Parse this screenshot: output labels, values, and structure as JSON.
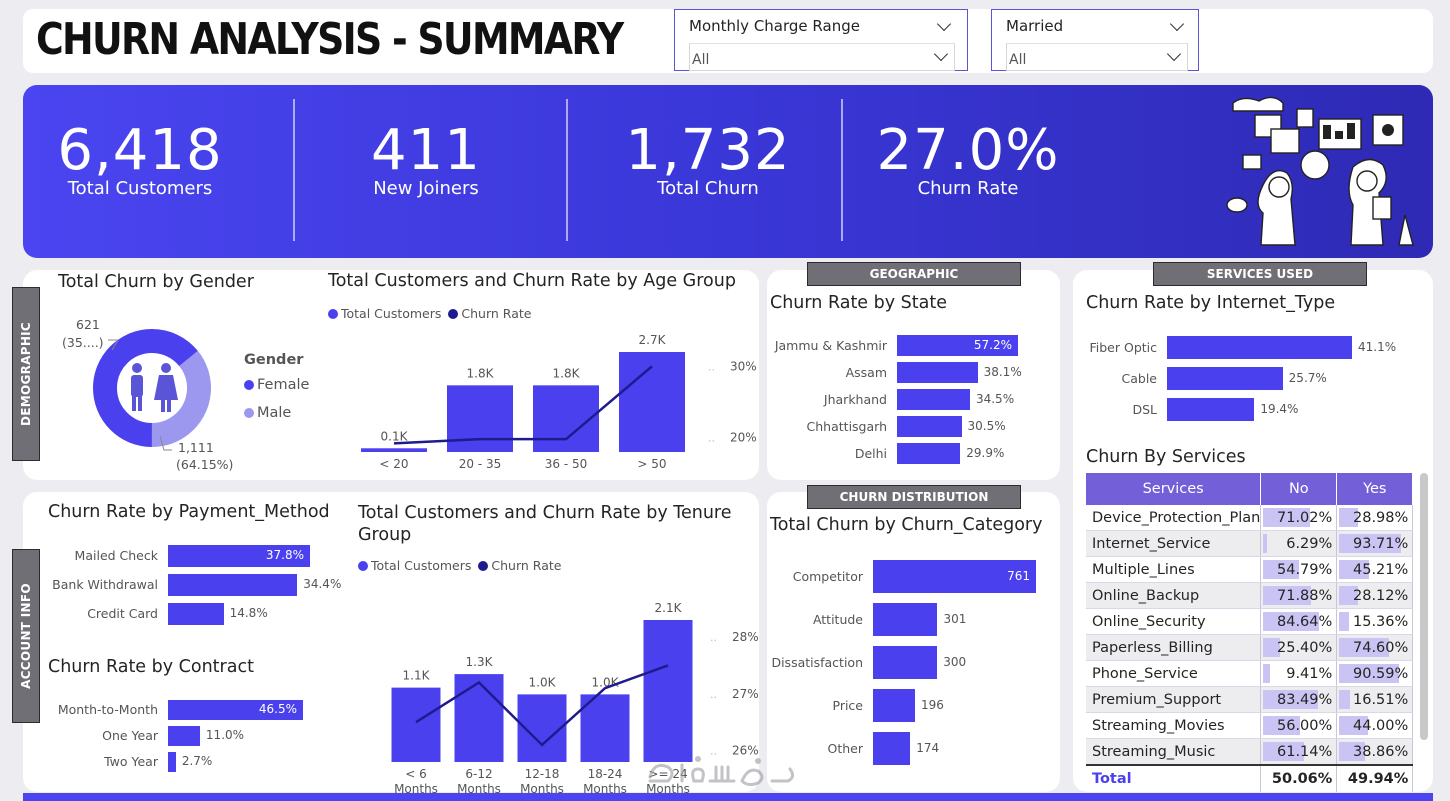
{
  "header": {
    "title": "CHURN ANALYSIS - SUMMARY"
  },
  "slicers": [
    {
      "label": "Monthly Charge Range",
      "value": "All"
    },
    {
      "label": "Married",
      "value": "All"
    }
  ],
  "kpis": [
    {
      "value": "6,418",
      "label": "Total Customers"
    },
    {
      "value": "411",
      "label": "New Joiners"
    },
    {
      "value": "1,732",
      "label": "Total Churn"
    },
    {
      "value": "27.0%",
      "label": "Churn Rate"
    }
  ],
  "sections": {
    "demographic": "DEMOGRAPHIC",
    "account_info": "ACCOUNT INFO",
    "geographic": "GEOGRAPHIC",
    "churn_distribution": "CHURN DISTRIBUTION",
    "services_used": "SERVICES USED"
  },
  "colors": {
    "primary": "#4a40ee",
    "line": "#1e1b8f",
    "male": "#9c97ef",
    "header_purple": "#7360d8"
  },
  "chart_data": [
    {
      "id": "gender",
      "type": "pie",
      "title": "Total Churn by Gender",
      "legend_title": "Gender",
      "categories": [
        "Female",
        "Male"
      ],
      "values": [
        1111,
        621
      ],
      "labels": [
        "1,111",
        "621"
      ],
      "pct_labels": [
        "(64.15%)",
        "(35....)"
      ]
    },
    {
      "id": "age",
      "type": "bar",
      "title": "Total Customers and Churn Rate by Age Group",
      "legend": [
        "Total Customers",
        "Churn Rate"
      ],
      "categories": [
        "< 20",
        "20 - 35",
        "36 - 50",
        "> 50"
      ],
      "values": [
        0.1,
        1.8,
        1.8,
        2.7
      ],
      "value_labels": [
        "0.1K",
        "1.8K",
        "1.8K",
        "2.7K"
      ],
      "line_values": [
        19.2,
        19.8,
        19.8,
        30.0
      ],
      "y2_ticks": [
        "30%",
        "20%"
      ],
      "y2lim": [
        18,
        32
      ]
    },
    {
      "id": "payment",
      "type": "bar",
      "title": "Churn Rate by Payment_Method",
      "categories": [
        "Mailed Check",
        "Bank Withdrawal",
        "Credit Card"
      ],
      "values": [
        37.8,
        34.4,
        14.8
      ],
      "value_labels": [
        "37.8%",
        "34.4%",
        "14.8%"
      ]
    },
    {
      "id": "contract",
      "type": "bar",
      "title": "Churn Rate by Contract",
      "categories": [
        "Month-to-Month",
        "One Year",
        "Two Year"
      ],
      "values": [
        46.5,
        11.0,
        2.7
      ],
      "value_labels": [
        "46.5%",
        "11.0%",
        "2.7%"
      ]
    },
    {
      "id": "tenure",
      "type": "bar",
      "title": "Total Customers and Churn Rate by Tenure Group",
      "legend": [
        "Total Customers",
        "Churn Rate"
      ],
      "categories": [
        "< 6 Months",
        "6-12 Months",
        "12-18 Months",
        "18-24 Months",
        ">= 24 Months"
      ],
      "values": [
        1.1,
        1.3,
        1.0,
        1.0,
        2.1
      ],
      "value_labels": [
        "1.1K",
        "1.3K",
        "1.0K",
        "1.0K",
        "2.1K"
      ],
      "line_values": [
        26.5,
        27.2,
        26.1,
        27.1,
        27.5
      ],
      "y2_ticks": [
        "28%",
        "27%",
        "26%"
      ],
      "y2lim": [
        25.8,
        28.3
      ]
    },
    {
      "id": "state",
      "type": "bar",
      "title": "Churn Rate by State",
      "categories": [
        "Jammu & Kashmir",
        "Assam",
        "Jharkhand",
        "Chhattisgarh",
        "Delhi"
      ],
      "values": [
        57.2,
        38.1,
        34.5,
        30.5,
        29.9
      ],
      "value_labels": [
        "57.2%",
        "38.1%",
        "34.5%",
        "30.5%",
        "29.9%"
      ]
    },
    {
      "id": "category",
      "type": "bar",
      "title": "Total Churn by Churn_Category",
      "categories": [
        "Competitor",
        "Attitude",
        "Dissatisfaction",
        "Price",
        "Other"
      ],
      "values": [
        761,
        301,
        300,
        196,
        174
      ],
      "value_labels": [
        "761",
        "301",
        "300",
        "196",
        "174"
      ]
    },
    {
      "id": "internet",
      "type": "bar",
      "title": "Churn Rate by Internet_Type",
      "categories": [
        "Fiber Optic",
        "Cable",
        "DSL"
      ],
      "values": [
        41.1,
        25.7,
        19.4
      ],
      "value_labels": [
        "41.1%",
        "25.7%",
        "19.4%"
      ]
    },
    {
      "id": "services",
      "type": "table",
      "title": "Churn By Services",
      "columns": [
        "Services",
        "No",
        "Yes"
      ],
      "rows": [
        {
          "name": "Device_Protection_Plan",
          "no": "71.02%",
          "yes": "28.98%",
          "no_v": 71.02,
          "yes_v": 28.98
        },
        {
          "name": "Internet_Service",
          "no": "6.29%",
          "yes": "93.71%",
          "no_v": 6.29,
          "yes_v": 93.71
        },
        {
          "name": "Multiple_Lines",
          "no": "54.79%",
          "yes": "45.21%",
          "no_v": 54.79,
          "yes_v": 45.21
        },
        {
          "name": "Online_Backup",
          "no": "71.88%",
          "yes": "28.12%",
          "no_v": 71.88,
          "yes_v": 28.12
        },
        {
          "name": "Online_Security",
          "no": "84.64%",
          "yes": "15.36%",
          "no_v": 84.64,
          "yes_v": 15.36
        },
        {
          "name": "Paperless_Billing",
          "no": "25.40%",
          "yes": "74.60%",
          "no_v": 25.4,
          "yes_v": 74.6
        },
        {
          "name": "Phone_Service",
          "no": "9.41%",
          "yes": "90.59%",
          "no_v": 9.41,
          "yes_v": 90.59
        },
        {
          "name": "Premium_Support",
          "no": "83.49%",
          "yes": "16.51%",
          "no_v": 83.49,
          "yes_v": 16.51
        },
        {
          "name": "Streaming_Movies",
          "no": "56.00%",
          "yes": "44.00%",
          "no_v": 56.0,
          "yes_v": 44.0
        },
        {
          "name": "Streaming_Music",
          "no": "61.14%",
          "yes": "38.86%",
          "no_v": 61.14,
          "yes_v": 38.86
        }
      ],
      "total": {
        "name": "Total",
        "no": "50.06%",
        "yes": "49.94%"
      }
    }
  ]
}
